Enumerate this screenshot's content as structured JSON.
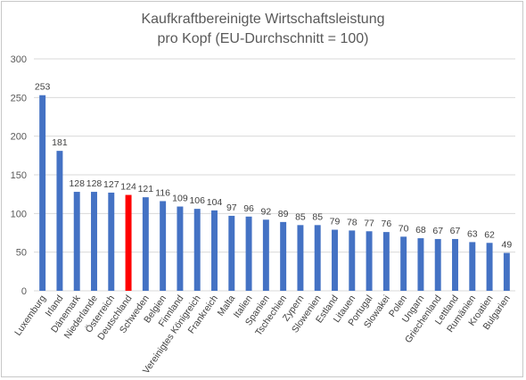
{
  "chart_data": {
    "type": "bar",
    "title_line1": "Kaufkraftbereinigte Wirtschaftsleistung",
    "title_line2": "pro Kopf (EU-Durchschnitt = 100)",
    "xlabel": "",
    "ylabel": "",
    "ylim": [
      0,
      300
    ],
    "yticks": [
      0,
      50,
      100,
      150,
      200,
      250,
      300
    ],
    "grid": true,
    "legend": "none",
    "bar_color": "#4472C4",
    "highlight_color": "#FF0000",
    "highlight_category": "Deutschland",
    "categories": [
      "Luxemburg",
      "Irland",
      "Dänemark",
      "Niederlande",
      "Österreich",
      "Deutschland",
      "Schweden",
      "Belgien",
      "Finnland",
      "Vereinigtes Königreich",
      "Frankreich",
      "Malta",
      "Italien",
      "Spanien",
      "Tschechien",
      "Zypern",
      "Slowenien",
      "Estland",
      "Litauen",
      "Portugal",
      "Slowakei",
      "Polen",
      "Ungarn",
      "Griechenland",
      "Lettland",
      "Rumänien",
      "Kroatien",
      "Bulgarien"
    ],
    "values": [
      253,
      181,
      128,
      128,
      127,
      124,
      121,
      116,
      109,
      106,
      104,
      97,
      96,
      92,
      89,
      85,
      85,
      79,
      78,
      77,
      76,
      70,
      68,
      67,
      67,
      63,
      62,
      49
    ]
  }
}
